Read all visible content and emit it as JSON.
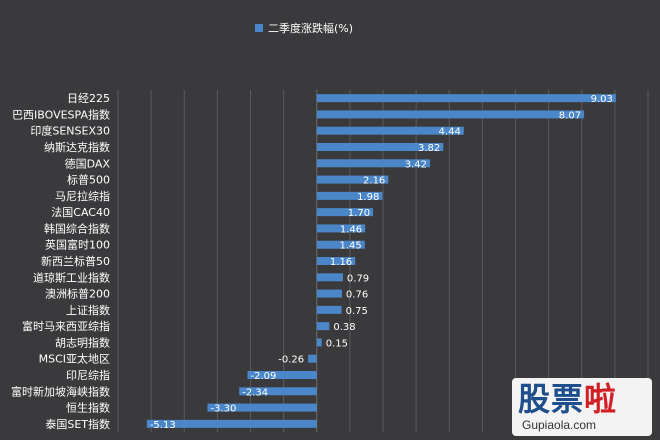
{
  "chart_data": {
    "type": "bar",
    "orientation": "horizontal",
    "legend": {
      "label": "二季度涨跌幅(%)",
      "placement": "top-center"
    },
    "series": [
      {
        "name": "二季度涨跌幅(%)",
        "color": "#4a86c8"
      }
    ],
    "categories": [
      "日经225",
      "巴西IBOVESPA指数",
      "印度SENSEX30",
      "纳斯达克指数",
      "德国DAX",
      "标普500",
      "马尼拉综指",
      "法国CAC40",
      "韩国综合指数",
      "英国富时100",
      "新西兰标普50",
      "道琼斯工业指数",
      "澳洲标普200",
      "上证指数",
      "富时马来西亚综指",
      "胡志明指数",
      "MSCI亚太地区",
      "印尼综指",
      "富时新加坡海峡指数",
      "恒生指数",
      "泰国SET指数"
    ],
    "values": [
      9.03,
      8.07,
      4.44,
      3.82,
      3.42,
      2.16,
      1.98,
      1.7,
      1.46,
      1.45,
      1.16,
      0.79,
      0.76,
      0.75,
      0.38,
      0.15,
      -0.26,
      -2.09,
      -2.34,
      -3.3,
      -5.13
    ],
    "value_labels": [
      "9.03",
      "8.07",
      "4.44",
      "3.82",
      "3.42",
      "2.16",
      "1.98",
      "1.70",
      "1.46",
      "1.45",
      "1.16",
      "0.79",
      "0.76",
      "0.75",
      "0.38",
      "0.15",
      "-0.26",
      "-2.09",
      "-2.34",
      "-3.30",
      "-5.13"
    ],
    "xlim": [
      -6,
      10
    ],
    "grid": true,
    "axis_labels_shown": false
  },
  "watermark": {
    "logo_text": "股票",
    "logo_accent": "啦",
    "url": "Gupiaola.com"
  },
  "colors": {
    "background": "#3a3a3c",
    "bar": "#4a86c8",
    "grid": "#5a5a5c",
    "text": "#ffffff"
  }
}
